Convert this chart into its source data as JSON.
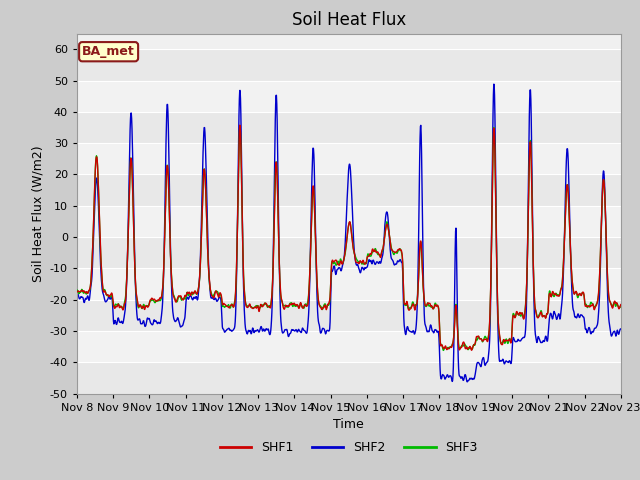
{
  "title": "Soil Heat Flux",
  "ylabel": "Soil Heat Flux (W/m2)",
  "xlabel": "Time",
  "ylim": [
    -50,
    65
  ],
  "yticks": [
    -50,
    -40,
    -30,
    -20,
    -10,
    0,
    10,
    20,
    30,
    40,
    50,
    60
  ],
  "x_start_day": 8,
  "x_end_day": 23,
  "x_tick_days": [
    8,
    9,
    10,
    11,
    12,
    13,
    14,
    15,
    16,
    17,
    18,
    19,
    20,
    21,
    22,
    23
  ],
  "x_tick_labels": [
    "Nov 8",
    "Nov 9",
    "Nov 10",
    "Nov 11",
    "Nov 12",
    "Nov 13",
    "Nov 14",
    "Nov 15",
    "Nov 16",
    "Nov 17",
    "Nov 18",
    "Nov 19",
    "Nov 20",
    "Nov 21",
    "Nov 22",
    "Nov 23"
  ],
  "color_shf1": "#cc0000",
  "color_shf2": "#0000cc",
  "color_shf3": "#00bb00",
  "linewidth": 1.0,
  "legend_labels": [
    "SHF1",
    "SHF2",
    "SHF3"
  ],
  "annotation_text": "BA_met",
  "annotation_bg": "#ffffcc",
  "annotation_border": "#8b1a1a",
  "title_fontsize": 12,
  "axis_label_fontsize": 9,
  "tick_fontsize": 8,
  "legend_fontsize": 9,
  "band_colors": [
    "#e8e8e8",
    "#f2f2f2"
  ],
  "grid_color": "#ffffff"
}
